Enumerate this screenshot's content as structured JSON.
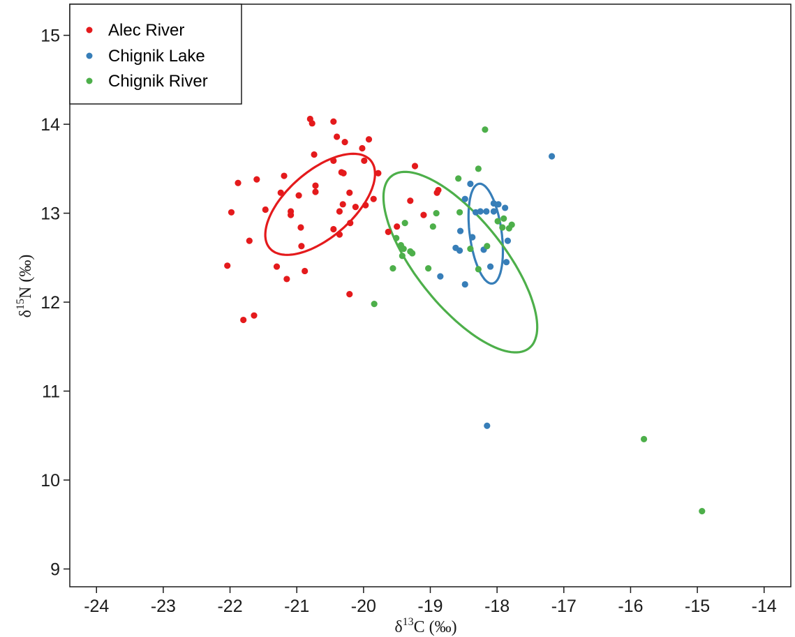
{
  "chart_data": {
    "type": "scatter",
    "title": "",
    "xlabel": {
      "prefix": "δ",
      "superscript": "13",
      "rest": "C (‰)"
    },
    "ylabel": {
      "prefix": "δ",
      "superscript": "15",
      "rest": "N (‰)"
    },
    "xlim": [
      -24.4,
      -13.6
    ],
    "ylim": [
      8.8,
      15.35
    ],
    "xticks": [
      -24,
      -23,
      -22,
      -21,
      -20,
      -19,
      -18,
      -17,
      -16,
      -15,
      -14
    ],
    "yticks": [
      9,
      10,
      11,
      12,
      13,
      14,
      15
    ],
    "grid": false,
    "legend_position": "top-left",
    "series": [
      {
        "name": "Alec River",
        "color": "#e41a1c",
        "ellipse": {
          "cx": -20.65,
          "cy": 13.1,
          "rx": 0.96,
          "ry": 0.43,
          "angle_deg": 29
        },
        "points": [
          [
            -20.8,
            14.06
          ],
          [
            -20.77,
            14.01
          ],
          [
            -20.45,
            14.03
          ],
          [
            -20.4,
            13.86
          ],
          [
            -20.28,
            13.8
          ],
          [
            -19.92,
            13.83
          ],
          [
            -20.02,
            13.73
          ],
          [
            -20.74,
            13.66
          ],
          [
            -20.45,
            13.59
          ],
          [
            -19.99,
            13.59
          ],
          [
            -19.78,
            13.45
          ],
          [
            -20.33,
            13.46
          ],
          [
            -20.3,
            13.45
          ],
          [
            -21.6,
            13.38
          ],
          [
            -21.88,
            13.34
          ],
          [
            -21.19,
            13.42
          ],
          [
            -20.72,
            13.31
          ],
          [
            -20.72,
            13.24
          ],
          [
            -21.24,
            13.23
          ],
          [
            -20.97,
            13.2
          ],
          [
            -20.21,
            13.23
          ],
          [
            -20.31,
            13.1
          ],
          [
            -20.12,
            13.07
          ],
          [
            -19.97,
            13.09
          ],
          [
            -19.85,
            13.16
          ],
          [
            -21.47,
            13.04
          ],
          [
            -21.09,
            13.02
          ],
          [
            -21.09,
            12.98
          ],
          [
            -20.36,
            13.02
          ],
          [
            -21.98,
            13.01
          ],
          [
            -20.2,
            12.89
          ],
          [
            -20.94,
            12.84
          ],
          [
            -20.45,
            12.82
          ],
          [
            -20.36,
            12.76
          ],
          [
            -21.71,
            12.69
          ],
          [
            -20.93,
            12.63
          ],
          [
            -21.3,
            12.4
          ],
          [
            -20.88,
            12.35
          ],
          [
            -21.15,
            12.26
          ],
          [
            -22.04,
            12.41
          ],
          [
            -20.21,
            12.09
          ],
          [
            -21.64,
            11.85
          ],
          [
            -21.8,
            11.8
          ],
          [
            -19.23,
            13.53
          ],
          [
            -18.88,
            13.26
          ],
          [
            -18.9,
            13.23
          ],
          [
            -19.3,
            13.14
          ],
          [
            -19.1,
            12.98
          ],
          [
            -19.63,
            12.79
          ],
          [
            -19.5,
            12.85
          ]
        ]
      },
      {
        "name": "Chignik Lake",
        "color": "#377eb8",
        "ellipse": {
          "cx": -18.17,
          "cy": 12.77,
          "rx": 0.6,
          "ry": 0.25,
          "angle_deg": -79
        },
        "points": [
          [
            -17.18,
            13.64
          ],
          [
            -18.4,
            13.33
          ],
          [
            -18.48,
            13.16
          ],
          [
            -18.05,
            13.11
          ],
          [
            -17.98,
            13.1
          ],
          [
            -17.88,
            13.06
          ],
          [
            -18.05,
            13.02
          ],
          [
            -18.16,
            13.02
          ],
          [
            -18.25,
            13.02
          ],
          [
            -18.32,
            13.01
          ],
          [
            -18.55,
            12.8
          ],
          [
            -18.37,
            12.73
          ],
          [
            -17.84,
            12.69
          ],
          [
            -18.62,
            12.61
          ],
          [
            -18.56,
            12.58
          ],
          [
            -18.2,
            12.59
          ],
          [
            -17.86,
            12.45
          ],
          [
            -18.1,
            12.4
          ],
          [
            -18.85,
            12.29
          ],
          [
            -18.48,
            12.2
          ],
          [
            -18.15,
            10.61
          ]
        ]
      },
      {
        "name": "Chignik River",
        "color": "#4daf4a",
        "ellipse": {
          "cx": -18.55,
          "cy": 12.45,
          "rx": 1.5,
          "ry": 0.6,
          "angle_deg": -40
        },
        "points": [
          [
            -18.18,
            13.94
          ],
          [
            -18.28,
            13.5
          ],
          [
            -18.58,
            13.39
          ],
          [
            -18.56,
            13.01
          ],
          [
            -18.91,
            13.0
          ],
          [
            -17.9,
            12.94
          ],
          [
            -17.99,
            12.91
          ],
          [
            -19.38,
            12.89
          ],
          [
            -17.78,
            12.87
          ],
          [
            -18.96,
            12.85
          ],
          [
            -17.92,
            12.84
          ],
          [
            -17.82,
            12.83
          ],
          [
            -19.51,
            12.72
          ],
          [
            -19.44,
            12.64
          ],
          [
            -18.15,
            12.63
          ],
          [
            -19.4,
            12.6
          ],
          [
            -18.4,
            12.6
          ],
          [
            -19.3,
            12.57
          ],
          [
            -19.27,
            12.55
          ],
          [
            -19.42,
            12.52
          ],
          [
            -19.56,
            12.38
          ],
          [
            -19.03,
            12.38
          ],
          [
            -18.28,
            12.37
          ],
          [
            -19.84,
            11.98
          ],
          [
            -15.8,
            10.46
          ],
          [
            -14.93,
            9.65
          ]
        ]
      }
    ]
  }
}
